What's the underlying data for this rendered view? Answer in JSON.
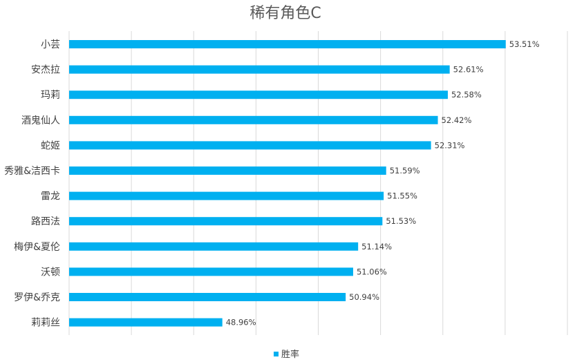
{
  "chart_data": {
    "type": "bar",
    "orientation": "horizontal",
    "title": "稀有角色C",
    "categories": [
      "小芸",
      "安杰拉",
      "玛莉",
      "酒鬼仙人",
      "蛇姬",
      "秀雅&洁西卡",
      "雷龙",
      "路西法",
      "梅伊&夏伦",
      "沃顿",
      "罗伊&乔克",
      "莉莉丝"
    ],
    "series": [
      {
        "name": "胜率",
        "values": [
          53.51,
          52.61,
          52.58,
          52.42,
          52.31,
          51.59,
          51.55,
          51.53,
          51.14,
          51.06,
          50.94,
          48.96
        ],
        "labels": [
          "53.51%",
          "52.61%",
          "52.58%",
          "52.42%",
          "52.31%",
          "51.59%",
          "51.55%",
          "51.53%",
          "51.14%",
          "51.06%",
          "50.94%",
          "48.96%"
        ],
        "color": "#00B0F0"
      }
    ],
    "xlim": [
      46.5,
      54.5
    ],
    "xgrid_step": 1,
    "grid": true,
    "show_tick_labels_x": false,
    "legend": {
      "position": "bottom",
      "entries": [
        "胜率"
      ]
    },
    "colors": {
      "bar": "#00B0F0",
      "grid": "#D9D9D9",
      "title": "#595959",
      "text": "#404040"
    }
  }
}
